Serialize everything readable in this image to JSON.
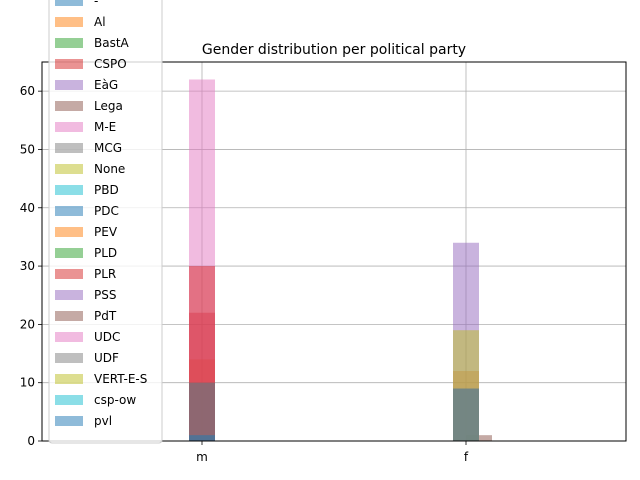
{
  "chart_data": {
    "type": "bar",
    "title": "Gender distribution per political party",
    "xlabel": "",
    "ylabel": "",
    "categories": [
      "m",
      "f"
    ],
    "ylim": [
      0,
      65
    ],
    "yticks": [
      0,
      10,
      20,
      30,
      40,
      50,
      60
    ],
    "grid": true,
    "legend_position": "upper-left",
    "bar_alpha": 0.5,
    "series": [
      {
        "name": "-",
        "color": "#1f77b4",
        "values": [
          1,
          0
        ]
      },
      {
        "name": "Al",
        "color": "#ff7f0e",
        "values": [
          14,
          12
        ]
      },
      {
        "name": "BastA",
        "color": "#2ca02c",
        "values": [
          0,
          0
        ]
      },
      {
        "name": "CSPO",
        "color": "#d62728",
        "values": [
          22,
          0
        ]
      },
      {
        "name": "EàG",
        "color": "#9467bd",
        "values": [
          0,
          34
        ]
      },
      {
        "name": "Lega",
        "color": "#8c564b",
        "values": [
          10,
          1
        ]
      },
      {
        "name": "M-E",
        "color": "#e377c2",
        "values": [
          62,
          0
        ]
      },
      {
        "name": "MCG",
        "color": "#7f7f7f",
        "values": [
          10,
          9
        ]
      },
      {
        "name": "None",
        "color": "#bcbd22",
        "values": [
          0,
          19
        ]
      },
      {
        "name": "PBD",
        "color": "#17becf",
        "values": [
          1,
          0
        ]
      },
      {
        "name": "PDC",
        "color": "#1f77b4",
        "values": [
          10,
          9
        ]
      },
      {
        "name": "PEV",
        "color": "#ff7f0e",
        "values": [
          0,
          0
        ]
      },
      {
        "name": "PLD",
        "color": "#2ca02c",
        "values": [
          0,
          0
        ]
      },
      {
        "name": "PLR",
        "color": "#d62728",
        "values": [
          30,
          0
        ]
      },
      {
        "name": "PSS",
        "color": "#9467bd",
        "values": [
          0,
          0
        ]
      },
      {
        "name": "PdT",
        "color": "#8c564b",
        "values": [
          0,
          0
        ]
      },
      {
        "name": "UDC",
        "color": "#e377c2",
        "values": [
          0,
          0
        ]
      },
      {
        "name": "UDF",
        "color": "#7f7f7f",
        "values": [
          10,
          9
        ]
      },
      {
        "name": "VERT-E-S",
        "color": "#bcbd22",
        "values": [
          0,
          0
        ]
      },
      {
        "name": "csp-ow",
        "color": "#17becf",
        "values": [
          0,
          0
        ]
      },
      {
        "name": "pvl",
        "color": "#1f77b4",
        "values": [
          1,
          0
        ]
      }
    ]
  }
}
